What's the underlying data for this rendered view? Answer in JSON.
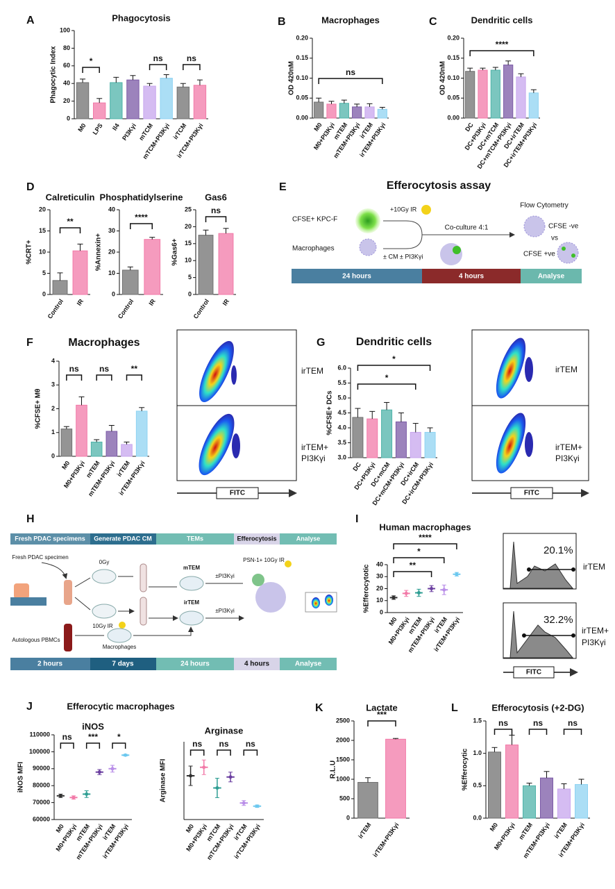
{
  "panel_labels": [
    "A",
    "B",
    "C",
    "D",
    "E",
    "F",
    "G",
    "H",
    "I",
    "J",
    "K",
    "L"
  ],
  "panel_J_title": "Efferocytic macrophages",
  "chart_data": [
    {
      "type": "bar",
      "title": "Phagocytosis",
      "y_label": "Phagocytic Index",
      "categories": [
        "M0",
        "LPS",
        "Il4",
        "PI3Kγi",
        "mTCM",
        "mTCM+PI3Kγi",
        "irTCM",
        "irTCM+PI3Kγi"
      ],
      "values": [
        41,
        18,
        41,
        44,
        37,
        46,
        36,
        38
      ],
      "errors": [
        4,
        5,
        6,
        5,
        3,
        4,
        4,
        6
      ],
      "colors": [
        "#707070",
        "#f27aa8",
        "#4fb3a9",
        "#7b5aa6",
        "#c7a6ee",
        "#8fd3f2",
        "#707070",
        "#f27aa8"
      ],
      "ylim": [
        0,
        100
      ],
      "yticks": [
        0,
        20,
        40,
        60,
        80,
        100
      ],
      "annotations": [
        "*",
        "ns",
        "ns"
      ]
    },
    {
      "type": "bar",
      "title": "Macrophages",
      "y_label": "OD 420nM",
      "categories": [
        "M0",
        "M0+PI3Kγi",
        "mTEM",
        "mTEM+PI3Kγi",
        "irTEM",
        "irTEM+PI3Kγi"
      ],
      "values": [
        0.04,
        0.035,
        0.037,
        0.028,
        0.028,
        0.022
      ],
      "errors": [
        0.01,
        0.007,
        0.008,
        0.007,
        0.008,
        0.005
      ],
      "colors": [
        "#707070",
        "#f27aa8",
        "#4fb3a9",
        "#7b5aa6",
        "#c7a6ee",
        "#8fd3f2"
      ],
      "ylim": [
        0,
        0.2
      ],
      "yticks": [
        {
          "value": 0,
          "label": "0.00"
        },
        {
          "value": 0.05,
          "label": "0.05"
        },
        {
          "value": 0.1,
          "label": "0.10"
        },
        {
          "value": 0.15,
          "label": "0.15"
        },
        {
          "value": 0.2,
          "label": "0.20"
        }
      ],
      "annotations": [
        "ns"
      ]
    },
    {
      "type": "bar",
      "title": "Dendritic cells",
      "y_label": "OD 420nM",
      "categories": [
        "DC",
        "DC+PI3Kγi",
        "DC+mTCM",
        "DC+mTCM+PI3Kγi",
        "DC+irTEM",
        "DC+irTEM+PI3Kγi"
      ],
      "values": [
        0.117,
        0.12,
        0.12,
        0.133,
        0.103,
        0.063
      ],
      "errors": [
        0.008,
        0.005,
        0.007,
        0.01,
        0.008,
        0.008
      ],
      "colors": [
        "#707070",
        "#f27aa8",
        "#4fb3a9",
        "#7b5aa6",
        "#c7a6ee",
        "#8fd3f2"
      ],
      "ylim": [
        0,
        0.2
      ],
      "yticks": [
        {
          "value": 0,
          "label": "0.00"
        },
        {
          "value": 0.05,
          "label": "0.05"
        },
        {
          "value": 0.1,
          "label": "0.10"
        },
        {
          "value": 0.15,
          "label": "0.15"
        },
        {
          "value": 0.2,
          "label": "0.20"
        }
      ],
      "annotations": [
        "****"
      ]
    },
    {
      "type": "bar",
      "title": "Calreticulin",
      "y_label": "%CRT+",
      "categories": [
        "Control",
        "IR"
      ],
      "values": [
        3.3,
        10.3
      ],
      "errors": [
        1.8,
        1.6
      ],
      "colors": [
        "#707070",
        "#f27aa8"
      ],
      "ylim": [
        0,
        20
      ],
      "yticks": [
        0,
        5,
        10,
        15,
        20
      ],
      "annotations": [
        "**"
      ]
    },
    {
      "type": "bar",
      "title": "Phosphatidylserine",
      "y_label": "%Annexin+",
      "categories": [
        "Control",
        "IR"
      ],
      "values": [
        11.5,
        26
      ],
      "errors": [
        1.5,
        1
      ],
      "colors": [
        "#707070",
        "#f27aa8"
      ],
      "ylim": [
        0,
        40
      ],
      "yticks": [
        0,
        10,
        20,
        30,
        40
      ],
      "annotations": [
        "****"
      ]
    },
    {
      "type": "bar",
      "title": "Gas6",
      "y_label": "%Gas6+",
      "categories": [
        "Control",
        "IR"
      ],
      "values": [
        17.5,
        18
      ],
      "errors": [
        1.5,
        1.5
      ],
      "colors": [
        "#707070",
        "#f27aa8"
      ],
      "ylim": [
        0,
        25
      ],
      "yticks": [
        0,
        5,
        10,
        15,
        20,
        25
      ],
      "annotations": [
        "ns"
      ]
    },
    {
      "type": "bar",
      "title": "Macrophages",
      "y_label": "%CFSE+ Mθ",
      "categories": [
        "M0",
        "M0+PI3Kγi",
        "mTEM",
        "mTEM+PI3Kγi",
        "irTEM",
        "irTEM+PI3Kγi"
      ],
      "values": [
        1.15,
        2.15,
        0.6,
        1.05,
        0.5,
        1.9
      ],
      "errors": [
        0.1,
        0.35,
        0.1,
        0.25,
        0.1,
        0.15
      ],
      "colors": [
        "#707070",
        "#f27aa8",
        "#4fb3a9",
        "#7b5aa6",
        "#c7a6ee",
        "#8fd3f2"
      ],
      "ylim": [
        0,
        4
      ],
      "yticks": [
        0,
        1,
        2,
        3,
        4
      ],
      "annotations": [
        "ns",
        "ns",
        "**"
      ]
    },
    {
      "type": "bar",
      "title": "Dendritic cells",
      "y_label": "%CFSE+ DCs",
      "categories": [
        "DC",
        "DC+PI3Kγi",
        "DC+mCM",
        "DC+mCM+PI3Kγi",
        "DC+irCM",
        "DC+irCM+PI3Kγi"
      ],
      "values": [
        4.35,
        4.3,
        4.6,
        4.2,
        3.85,
        3.85
      ],
      "errors": [
        0.3,
        0.25,
        0.25,
        0.3,
        0.3,
        0.15
      ],
      "colors": [
        "#707070",
        "#f27aa8",
        "#4fb3a9",
        "#7b5aa6",
        "#c7a6ee",
        "#8fd3f2"
      ],
      "ylim": [
        3,
        6
      ],
      "yticks": [
        {
          "value": 3,
          "label": "3.0"
        },
        {
          "value": 3.5,
          "label": "3.5"
        },
        {
          "value": 4,
          "label": "4.0"
        },
        {
          "value": 4.5,
          "label": "4.5"
        },
        {
          "value": 5,
          "label": "5.0"
        },
        {
          "value": 5.5,
          "label": "5.5"
        },
        {
          "value": 6,
          "label": "6.0"
        }
      ],
      "annotations": [
        "*",
        "*"
      ]
    },
    {
      "type": "dot",
      "title": "Human macrophages",
      "y_label": "%Efferocytotic",
      "categories": [
        "M0",
        "M0+PI3Kγi",
        "mTEM",
        "mTEM+PI3Kγi",
        "irTEM",
        "irTEM+PI3Kγi"
      ],
      "values": [
        12.5,
        16,
        16.5,
        20,
        19,
        32
      ],
      "errors": [
        1.5,
        2.5,
        3,
        2.5,
        4,
        1.5
      ],
      "colors": [
        "#303030",
        "#f27aa8",
        "#2f9e93",
        "#6b3fa0",
        "#b98ee8",
        "#6cc8ef"
      ],
      "ylim": [
        0,
        40
      ],
      "yticks": [
        0,
        10,
        20,
        30,
        40
      ],
      "annotations": [
        "****",
        "*",
        "**"
      ]
    },
    {
      "type": "dot",
      "title": "iNOS",
      "y_label": "iNOS MFI",
      "categories": [
        "M0",
        "M0+PI3Kγi",
        "mTEM",
        "mTEM+PI3Kγi",
        "irTEM",
        "irTEM+PI3Kγi"
      ],
      "values": [
        74000,
        73000,
        75000,
        88000,
        90000,
        98000
      ],
      "errors": [
        1000,
        1000,
        2000,
        1500,
        2000,
        500
      ],
      "colors": [
        "#303030",
        "#f27aa8",
        "#2f9e93",
        "#6b3fa0",
        "#b98ee8",
        "#6cc8ef"
      ],
      "ylim": [
        60000,
        110000
      ],
      "yticks": [
        60000,
        70000,
        80000,
        90000,
        100000,
        110000
      ],
      "annotations": [
        "ns",
        "***",
        "*"
      ]
    },
    {
      "type": "dot",
      "title": "Arginase",
      "y_label": "Arginase MFI",
      "categories": [
        "M0",
        "M0+PI3Kγi",
        "mTCM",
        "mTCM+PI3Kγi",
        "irTCM",
        "irTCM+PI3Kγi"
      ],
      "values": [
        3600,
        3950,
        3100,
        3550,
        2480,
        2350
      ],
      "errors": [
        400,
        300,
        400,
        200,
        100,
        50
      ],
      "colors": [
        "#303030",
        "#f27aa8",
        "#2f9e93",
        "#6b3fa0",
        "#b98ee8",
        "#6cc8ef"
      ],
      "ylim": [
        1800,
        5000
      ],
      "annotations": [
        "ns",
        "ns",
        "ns"
      ]
    },
    {
      "type": "bar",
      "title": "Lactate",
      "y_label": "R.L.U",
      "categories": [
        "irTEM",
        "irTEM+PI3Kγi"
      ],
      "values": [
        920,
        2030
      ],
      "errors": [
        120,
        20
      ],
      "colors": [
        "#707070",
        "#f27aa8"
      ],
      "ylim": [
        0,
        2500
      ],
      "yticks": [
        0,
        500,
        1000,
        1500,
        2000,
        2500
      ],
      "annotations": [
        "***"
      ]
    },
    {
      "type": "bar",
      "title": "Efferocytosis (+2-DG)",
      "y_label": "%Efferocytic",
      "categories": [
        "M0",
        "M0+PI3Kγi",
        "mTEM",
        "mTEM+PI3Kγi",
        "irTEM",
        "irTEM+PI3Kγi"
      ],
      "values": [
        1.02,
        1.13,
        0.5,
        0.62,
        0.45,
        0.52
      ],
      "errors": [
        0.07,
        0.15,
        0.04,
        0.1,
        0.08,
        0.08
      ],
      "colors": [
        "#707070",
        "#f27aa8",
        "#4fb3a9",
        "#7b5aa6",
        "#c7a6ee",
        "#8fd3f2"
      ],
      "ylim": [
        0,
        1.5
      ],
      "yticks": [
        {
          "value": 0,
          "label": "0.0"
        },
        {
          "value": 0.5,
          "label": "0.5"
        },
        {
          "value": 1,
          "label": "1.0"
        },
        {
          "value": 1.5,
          "label": "1.5"
        }
      ],
      "annotations": [
        "ns",
        "ns",
        "ns"
      ]
    }
  ],
  "efferocytosis_assay": {
    "title": "Efferocytosis assay",
    "tumor_cells": "CFSE+ KPC-F",
    "irradiation": "+10Gy IR",
    "macrophages": "Macrophages",
    "treatment": "± CM ± PI3Kγi",
    "coculture": "Co-culture 4:1",
    "readout": "Flow Cytometry",
    "negative": "CFSE -ve",
    "versus": "vs",
    "positive": "CFSE +ve",
    "timeline": [
      "24 hours",
      "4 hours",
      "Analyse"
    ]
  },
  "pdac_workflow": {
    "header": [
      "Fresh PDAC specimens",
      "Generate PDAC CM",
      "TEMs",
      "Efferocytosis",
      "Analyse"
    ],
    "specimen": "Fresh PDAC specimen",
    "dose_0": "0Gy",
    "dose_10": "10Gy IR",
    "mtem": "mTEM",
    "irtem": "irTEM",
    "inhibitor_1": "±PI3Kγi",
    "inhibitor_2": "±PI3Kγi",
    "target": "PSN-1+ 10Gy IR",
    "pbmcs": "Autologous PBMCs",
    "macrophages": "Macrophages",
    "timeline": [
      "2 hours",
      "7 days",
      "24 hours",
      "4 hours",
      "Analyse"
    ]
  },
  "flow_F": {
    "top": "irTEM",
    "bottom": [
      "irTEM+",
      "PI3Kγi"
    ],
    "axis": "FITC"
  },
  "flow_G": {
    "top": "irTEM",
    "bottom": [
      "irTEM+",
      "PI3Kγi"
    ],
    "axis": "FITC"
  },
  "histograms_I": {
    "top_percent": "20.1%",
    "top": "irTEM",
    "bottom_percent": "32.2%",
    "bottom": [
      "irTEM+",
      "PI3Kγi"
    ],
    "axis": "FITC"
  }
}
